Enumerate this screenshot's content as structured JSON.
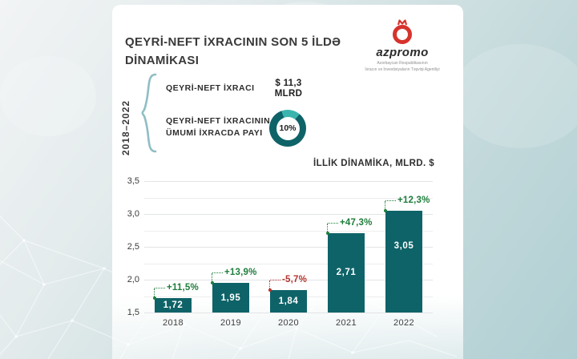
{
  "header": {
    "title": "QEYRİ-NEFT İXRACININ SON 5 İLDƏ DİNAMİKASI",
    "logo": {
      "name": "azpromo",
      "tagline_line1": "Azərbaycan Respublikasının",
      "tagline_line2": "İxracın və İnvestisiyaların Təşviqi Agentliyi",
      "brand_color": "#d6332c"
    }
  },
  "summary": {
    "period": "2018–2022",
    "row1": {
      "label": "QEYRİ-NEFT İXRACI",
      "value_line1": "$ 11,3",
      "value_line2": "MLRD"
    },
    "row2": {
      "label_line1": "QEYRİ-NEFT İXRACININ",
      "label_line2": "ÜMUMİ İXRACDA PAYI",
      "donut_value": "10%",
      "donut_ring_color": "#0e6368",
      "donut_segment_color": "#3cb4ae"
    }
  },
  "chart_data": {
    "type": "bar",
    "title": "İLLİK DİNAMİKA, MLRD. $",
    "categories": [
      "2018",
      "2019",
      "2020",
      "2021",
      "2022"
    ],
    "values": [
      1.72,
      1.95,
      1.84,
      2.71,
      3.05
    ],
    "value_labels": [
      "1,72",
      "1,95",
      "1,84",
      "2,71",
      "3,05"
    ],
    "change_labels": [
      "+11,5%",
      "+13,9%",
      "-5,7%",
      "+47,3%",
      "+12,3%"
    ],
    "change_colors": [
      "#1e7d3b",
      "#1e7d3b",
      "#b5342e",
      "#1e7d3b",
      "#1e7d3b"
    ],
    "xlabel": "",
    "ylabel": "",
    "ylim": [
      1.5,
      3.5
    ],
    "yticks": [
      "3,5",
      "3,0",
      "2,5",
      "2,0",
      "1,5"
    ],
    "grid_step": 0.25,
    "grid": true,
    "legend_position": "none",
    "bar_color": "#0e6368"
  }
}
